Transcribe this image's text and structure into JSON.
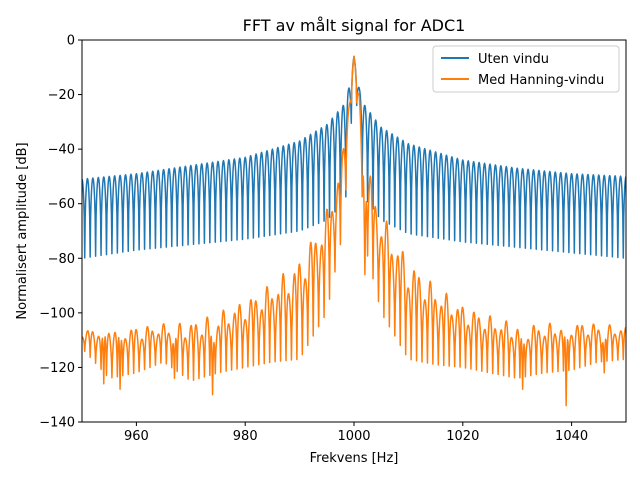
{
  "chart_data": {
    "type": "line",
    "title": "FFT av målt signal for ADC1",
    "xlabel": "Frekvens [Hz]",
    "ylabel": "Normalisert amplitude [dB]",
    "xlim": [
      950,
      1050
    ],
    "ylim": [
      -140,
      0
    ],
    "xticks": [
      960,
      980,
      1000,
      1020,
      1040
    ],
    "yticks": [
      0,
      -20,
      -40,
      -60,
      -80,
      -100,
      -120,
      -140
    ],
    "grid": false,
    "legend_position": "top-right",
    "peak": {
      "x": 1000,
      "y": -6
    },
    "series": [
      {
        "name": "Uten vindu",
        "color": "#1f77b4",
        "ripple_spacing_hz": 1,
        "envelope": {
          "x": [
            950,
            960,
            970,
            980,
            990,
            995,
            998,
            999,
            1000,
            1001,
            1002,
            1005,
            1010,
            1020,
            1030,
            1040,
            1050
          ],
          "upper": [
            -51,
            -49,
            -46,
            -43,
            -37,
            -31,
            -24,
            -18,
            -6,
            -18,
            -24,
            -32,
            -38,
            -44,
            -47,
            -49,
            -50
          ],
          "lower": [
            -80,
            -77,
            -75,
            -73,
            -70,
            -66,
            -60,
            -55,
            -6,
            -42,
            -58,
            -66,
            -71,
            -74,
            -76,
            -78,
            -80
          ]
        }
      },
      {
        "name": "Med Hanning-vindu",
        "color": "#ff7f0e",
        "ripple_spacing_hz": 1,
        "envelope": {
          "x": [
            950,
            955,
            960,
            965,
            970,
            975,
            980,
            985,
            990,
            995,
            998,
            999,
            1000,
            1001,
            1002,
            1005,
            1010,
            1015,
            1020,
            1025,
            1030,
            1035,
            1040,
            1045,
            1050
          ],
          "upper": [
            -107,
            -103,
            -105,
            -104,
            -103,
            -100,
            -95,
            -89,
            -80,
            -62,
            -40,
            -20,
            -6,
            -20,
            -42,
            -63,
            -80,
            -90,
            -97,
            -101,
            -104,
            -104,
            -103,
            -104,
            -105
          ],
          "lower": [
            -113,
            -124,
            -122,
            -118,
            -125,
            -122,
            -120,
            -118,
            -117,
            -100,
            -70,
            -40,
            -6,
            -40,
            -75,
            -100,
            -117,
            -119,
            -120,
            -122,
            -124,
            -122,
            -121,
            -118,
            -117
          ]
        },
        "deep_nulls": [
          {
            "x": 954,
            "y": -126
          },
          {
            "x": 957,
            "y": -128
          },
          {
            "x": 967,
            "y": -124
          },
          {
            "x": 974,
            "y": -130
          },
          {
            "x": 1002,
            "y": -86
          },
          {
            "x": 1031,
            "y": -128
          },
          {
            "x": 1039,
            "y": -134
          },
          {
            "x": 1046,
            "y": -122
          }
        ]
      }
    ]
  }
}
